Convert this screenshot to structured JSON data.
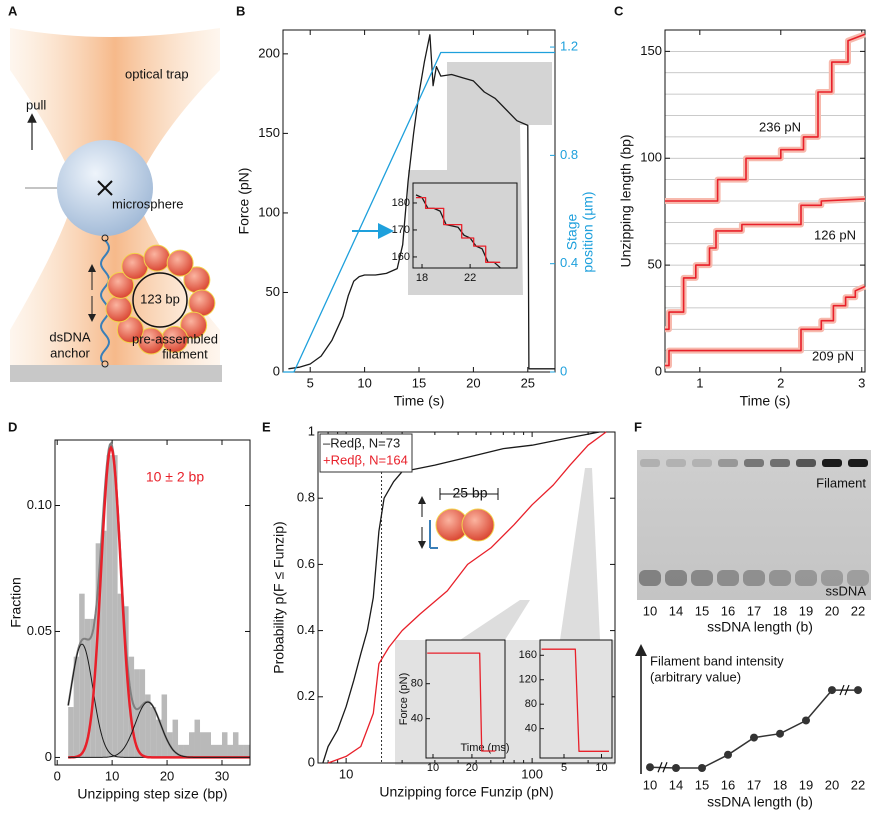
{
  "diagram_a": {
    "panel": "A",
    "trap_label": "optical trap",
    "pull_label": "pull",
    "sphere_label": "microsphere",
    "ring_label": "123 bp",
    "dsdna_label": [
      "dsDNA",
      "anchor"
    ],
    "filament_label": [
      "pre-assembled",
      "filament"
    ]
  },
  "chart_data": [
    {
      "panel": "B",
      "type": "line",
      "xlabel": "Time (s)",
      "ylabel": "Force (pN)",
      "y2label": [
        "Stage",
        "position (µm)"
      ],
      "y2color": "#1ea0dc",
      "xlim": [
        2.5,
        27.5
      ],
      "xticks": [
        5,
        10,
        15,
        20,
        25
      ],
      "ylim": [
        0,
        215
      ],
      "yticks": [
        0,
        50,
        100,
        150,
        200
      ],
      "y2lim": [
        0,
        1.263
      ],
      "y2ticks": [
        0,
        0.4,
        0.8,
        1.2
      ],
      "series": [
        {
          "color": "#1a1a1a",
          "x": [
            3,
            4,
            5,
            6,
            7,
            8,
            8.5,
            9,
            9.5,
            10,
            11,
            12,
            13,
            13.5,
            14,
            14.5,
            15,
            15.5,
            16,
            16.3,
            16.6,
            17,
            18,
            19,
            20,
            21,
            22,
            23,
            24,
            25,
            25.1,
            27.5
          ],
          "values": [
            2,
            3,
            5,
            10,
            20,
            35,
            48,
            57,
            60,
            61,
            61,
            62,
            65,
            80,
            120,
            150,
            175,
            195,
            212,
            180,
            192,
            186,
            187,
            185,
            183,
            176,
            172,
            165,
            158,
            155,
            2,
            2
          ]
        },
        {
          "color": "#1ea0dc",
          "axis": "y2",
          "x": [
            2.5,
            3.5,
            17,
            27.5
          ],
          "values": [
            0,
            0,
            1.18,
            1.18
          ]
        }
      ],
      "insets": [
        {
          "type": "line",
          "xlim": [
            17.25,
            25.9
          ],
          "xticks": [
            18,
            22
          ],
          "ylim": [
            155.9,
            187.4
          ],
          "yticks": [
            160,
            170,
            180
          ],
          "series": [
            {
              "color": "#1a1a1a",
              "x": [
                17.5,
                18,
                18.5,
                19,
                19.5,
                20,
                21,
                21.5,
                22,
                22.5,
                23,
                23.5,
                24,
                24.5
              ],
              "values": [
                183,
                182,
                178,
                178,
                177,
                172,
                171,
                168,
                167,
                164,
                163,
                158,
                158,
                156
              ]
            },
            {
              "color": "#e8202a",
              "x": [
                17.5,
                18.3,
                18.3,
                19.8,
                19.8,
                21.3,
                21.3,
                22.3,
                22.3,
                23.3,
                23.3,
                24.5
              ],
              "values": [
                182,
                182,
                178,
                178,
                172,
                172,
                167,
                167,
                164,
                164,
                158,
                158
              ]
            }
          ]
        }
      ]
    },
    {
      "panel": "C",
      "type": "line",
      "xlabel": "Time (s)",
      "ylabel": "Unzipping length (bp)",
      "band": true,
      "xlim": [
        0.57,
        3.04
      ],
      "xticks": [
        1,
        2,
        3
      ],
      "ylim": [
        0,
        160
      ],
      "yticks": [
        0,
        50,
        100,
        150
      ],
      "gridlines": [
        10,
        20,
        30,
        40,
        50,
        60,
        70,
        80,
        90,
        100,
        110,
        120,
        130,
        140,
        150
      ],
      "series": [
        {
          "name": "236 pN",
          "color": "#e8202a",
          "x": [
            0.57,
            1.22,
            1.22,
            1.57,
            1.57,
            2.0,
            2.0,
            2.28,
            2.28,
            2.46,
            2.46,
            2.63,
            2.63,
            2.83,
            2.83,
            3.04
          ],
          "values": [
            80,
            80,
            90,
            90,
            100,
            100,
            104,
            104,
            110,
            110,
            131,
            131,
            145,
            145,
            155,
            158
          ]
        },
        {
          "name": "126 pN",
          "color": "#e8202a",
          "x": [
            0.57,
            0.62,
            0.62,
            0.8,
            0.8,
            0.95,
            0.95,
            1.12,
            1.12,
            1.2,
            1.2,
            1.52,
            1.52,
            2.25,
            2.25,
            2.5,
            2.5,
            3.04
          ],
          "values": [
            20,
            20,
            28,
            28,
            44,
            44,
            50,
            50,
            58,
            58,
            66,
            66,
            69,
            69,
            78,
            78,
            80,
            81
          ]
        },
        {
          "name": "209 pN",
          "color": "#e8202a",
          "x": [
            0.57,
            0.62,
            0.62,
            2.25,
            2.25,
            2.5,
            2.5,
            2.65,
            2.65,
            2.8,
            2.8,
            2.92,
            2.92,
            3.04
          ],
          "values": [
            3,
            3,
            10,
            10,
            20,
            20,
            24,
            24,
            31,
            31,
            35,
            35,
            38,
            40
          ]
        }
      ]
    },
    {
      "panel": "D",
      "type": "histogram",
      "xlabel": "Unzipping step size (bp)",
      "ylabel": "Fraction",
      "color": "#b9b9b9",
      "xlim": [
        -0.4,
        35.1
      ],
      "xticks": [
        0,
        10,
        20,
        30
      ],
      "ylim": [
        -0.003,
        0.126
      ],
      "yticks": [
        0,
        0.05,
        {
          "value": 0.1,
          "label": "0.10"
        }
      ],
      "bins": [
        2,
        3,
        4,
        5,
        6,
        7,
        8,
        9,
        10,
        11,
        12,
        13,
        14,
        15,
        16,
        17,
        18,
        19,
        20,
        21,
        22,
        23,
        24,
        25,
        26,
        27,
        28,
        29,
        30,
        31,
        32,
        33,
        34,
        35
      ],
      "values": [
        0.02,
        0.04,
        0.065,
        0.055,
        0.055,
        0.085,
        0.09,
        0.12,
        0.12,
        0.065,
        0.06,
        0.04,
        0.035,
        0.035,
        0.025,
        0.02,
        0.015,
        0.025,
        0.01,
        0.015,
        0.005,
        0.005,
        0.01,
        0.015,
        0.01,
        0.01,
        0.005,
        0.005,
        0.01,
        0.005,
        0.01,
        0.005,
        0.005
      ],
      "fits": [
        {
          "mean": 4.5,
          "sd": 2,
          "peak": 0.045,
          "color": "#1a1a1a"
        },
        {
          "mean": 9.8,
          "sd": 1.8,
          "peak": 0.123,
          "color": "#e8202a"
        },
        {
          "mean": 16.5,
          "sd": 2.3,
          "peak": 0.022,
          "color": "#1a1a1a"
        }
      ],
      "sum_color": "#808080",
      "annotation": "10 ± 2 bp",
      "annotation_color": "#e8202a"
    },
    {
      "panel": "E",
      "type": "line",
      "xscale": "log",
      "xlabel": "Unzipping force Funzip (pN)",
      "ylabel": "Probability p(F ≤ Funzip)",
      "annotation": "25 bp",
      "xlim": [
        7.06,
        279
      ],
      "xticks": [
        10,
        100
      ],
      "xminorticks": [
        8,
        9,
        20,
        30,
        40,
        50,
        60,
        70,
        80,
        90,
        200
      ],
      "ylim": [
        0,
        1
      ],
      "yticks": [
        0,
        0.2,
        0.4,
        0.6,
        0.8,
        1
      ],
      "threshold": 15.5,
      "series": [
        {
          "name": "–Redβ, N=73",
          "color": "#1a1a1a",
          "x": [
            7.5,
            8,
            9,
            10,
            11,
            12,
            13,
            14,
            14.5,
            15,
            16,
            18,
            20,
            30,
            50,
            70,
            100,
            150,
            230
          ],
          "values": [
            0,
            0.05,
            0.1,
            0.17,
            0.25,
            0.33,
            0.4,
            0.5,
            0.6,
            0.7,
            0.8,
            0.85,
            0.88,
            0.9,
            0.93,
            0.95,
            0.96,
            0.98,
            1
          ]
        },
        {
          "name": "+Redβ, N=164",
          "color": "#e8202a",
          "x": [
            8,
            10,
            12,
            14,
            15,
            17,
            20,
            25,
            35,
            45,
            60,
            80,
            100,
            130,
            160,
            200,
            250
          ],
          "values": [
            0,
            0.02,
            0.05,
            0.15,
            0.3,
            0.35,
            0.4,
            0.45,
            0.52,
            0.6,
            0.65,
            0.72,
            0.78,
            0.84,
            0.9,
            0.96,
            1
          ]
        }
      ],
      "insets": [
        {
          "type": "line",
          "xlabel": "Time (ms)",
          "ylabel": "Force (pN)",
          "xlim": [
            8.2,
            28.5
          ],
          "xticks": [
            10,
            20
          ],
          "ylim": [
            -5,
            130
          ],
          "yticks": [
            40,
            80
          ],
          "series": [
            {
              "color": "#e8202a",
              "x": [
                8.5,
                22,
                22.5,
                26
              ],
              "values": [
                115,
                115,
                3,
                3
              ]
            }
          ]
        },
        {
          "type": "line",
          "xlim": [
            1.8,
            11.4
          ],
          "xticks": [
            5,
            10
          ],
          "ylim": [
            -8,
            185
          ],
          "yticks": [
            40,
            80,
            120,
            160
          ],
          "series": [
            {
              "color": "#e8202a",
              "x": [
                2,
                6.5,
                7,
                11
              ],
              "values": [
                170,
                170,
                3,
                3
              ]
            }
          ]
        }
      ]
    },
    {
      "panel": "F",
      "type": "gel",
      "band_top": "Filament",
      "band_bottom": "ssDNA",
      "xlabel": "ssDNA length (b)",
      "ylabel": [
        "Filament band intensity",
        "(arbitrary value)"
      ],
      "categories": [
        "10",
        "14",
        "15",
        "16",
        "17",
        "18",
        "19",
        "20",
        "22"
      ],
      "values": [
        0.01,
        0,
        0,
        0.17,
        0.39,
        0.44,
        0.61,
        1,
        1
      ],
      "ylim": [
        0,
        1.45
      ],
      "color": "#333333"
    }
  ]
}
